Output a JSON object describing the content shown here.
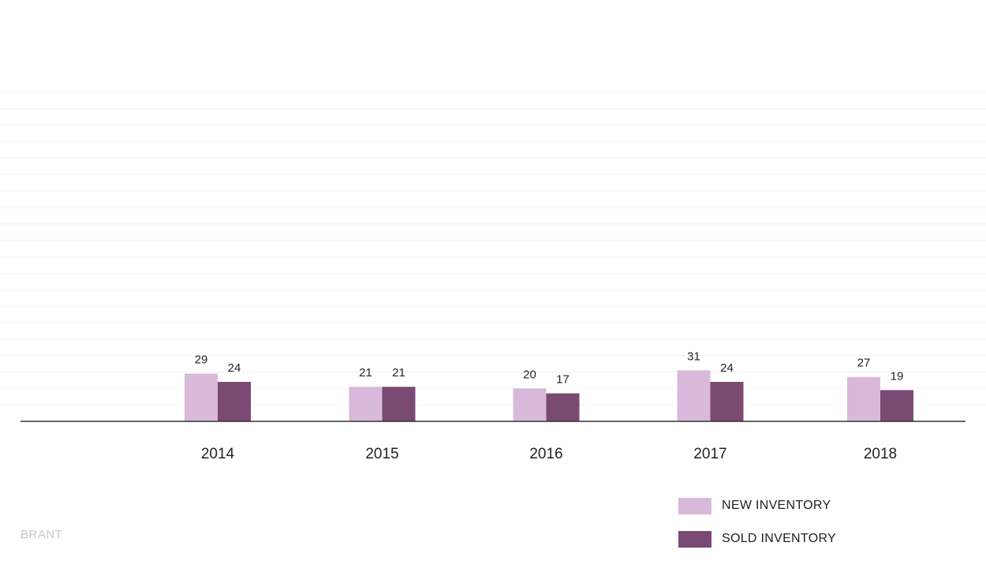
{
  "chart_data": {
    "type": "bar",
    "categories": [
      "2014",
      "2015",
      "2016",
      "2017",
      "2018"
    ],
    "series": [
      {
        "name": "NEW INVENTORY",
        "values": [
          29,
          21,
          20,
          31,
          27
        ],
        "color": "#d8b9d9"
      },
      {
        "name": "SOLD INVENTORY",
        "values": [
          24,
          21,
          17,
          24,
          19
        ],
        "color": "#7a4a73"
      }
    ],
    "ylim": [
      0,
      200
    ],
    "grid": true,
    "legend_position": "bottom-right"
  },
  "brand": "BRANT"
}
